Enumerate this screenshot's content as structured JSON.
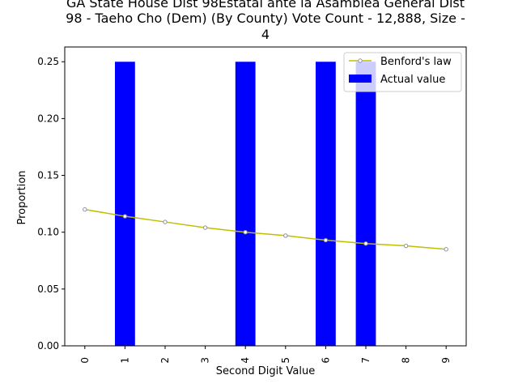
{
  "chart_data": {
    "type": "bar",
    "title_lines": [
      "GA State House Dist 98Estatal ante la Asamblea General Dist",
      "98 - Taeho Cho (Dem) (By County) Vote Count - 12,888, Size -",
      "4"
    ],
    "xlabel": "Second Digit Value",
    "ylabel": "Proportion",
    "categories": [
      "0",
      "1",
      "2",
      "3",
      "4",
      "5",
      "6",
      "7",
      "8",
      "9"
    ],
    "x": [
      0,
      1,
      2,
      3,
      4,
      5,
      6,
      7,
      8,
      9
    ],
    "ylim": [
      0,
      0.25
    ],
    "yticks": [
      0.0,
      0.05,
      0.1,
      0.15,
      0.2,
      0.25
    ],
    "ytick_labels": [
      "0.00",
      "0.05",
      "0.10",
      "0.15",
      "0.20",
      "0.25"
    ],
    "grid": false,
    "legend_position": "top-right",
    "series": [
      {
        "name": "Benford's law",
        "kind": "line",
        "color": "#bfbf00",
        "marker_color": "#8f8fa8",
        "values": [
          0.12,
          0.114,
          0.109,
          0.104,
          0.1,
          0.097,
          0.093,
          0.09,
          0.088,
          0.085
        ]
      },
      {
        "name": "Actual value",
        "kind": "bar",
        "color": "#0000ff",
        "values": [
          0,
          0.25,
          0,
          0,
          0.25,
          0,
          0.25,
          0.25,
          0,
          0
        ]
      }
    ]
  }
}
